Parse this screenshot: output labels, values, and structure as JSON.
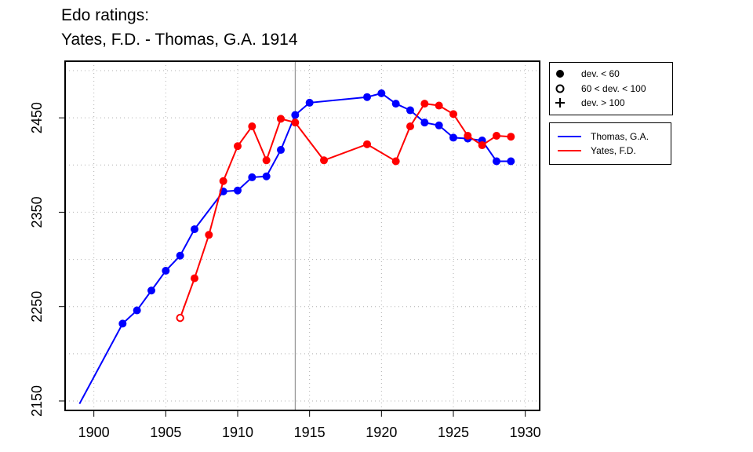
{
  "title_line1": "Edo ratings:",
  "title_line2": "Yates, F.D. - Thomas, G.A. 1914",
  "legend_markers": {
    "filled": "dev. < 60",
    "open": "60 < dev. < 100",
    "plus": "dev. > 100"
  },
  "chart_data": {
    "type": "line",
    "xlim": [
      1898,
      1931
    ],
    "ylim": [
      2140,
      2510
    ],
    "x_ticks": [
      1900,
      1905,
      1910,
      1915,
      1920,
      1925,
      1930
    ],
    "y_ticks": [
      2150,
      2250,
      2350,
      2450
    ],
    "vline": 1914,
    "grid": "dotted",
    "legend_position": "outside-right",
    "series": [
      {
        "name": "Thomas, G.A.",
        "color": "#0000ff",
        "x": [
          1899,
          1902,
          1903,
          1904,
          1905,
          1906,
          1907,
          1909,
          1910,
          1911,
          1912,
          1913,
          1914,
          1915,
          1919,
          1920,
          1921,
          1922,
          1923,
          1924,
          1925,
          1926,
          1927,
          1928,
          1929
        ],
        "y": [
          2147,
          2232,
          2246,
          2267,
          2288,
          2304,
          2332,
          2372,
          2373,
          2387,
          2388,
          2416,
          2453,
          2466,
          2472,
          2476,
          2465,
          2458,
          2445,
          2442,
          2429,
          2428,
          2426,
          2404,
          2404
        ],
        "dev": [
          "none",
          "filled",
          "filled",
          "filled",
          "filled",
          "filled",
          "filled",
          "filled",
          "filled",
          "filled",
          "filled",
          "filled",
          "filled",
          "filled",
          "filled",
          "filled",
          "filled",
          "filled",
          "filled",
          "filled",
          "filled",
          "filled",
          "filled",
          "filled",
          "filled"
        ]
      },
      {
        "name": "Yates, F.D.",
        "color": "#ff0000",
        "x": [
          1906,
          1907,
          1908,
          1909,
          1910,
          1911,
          1912,
          1913,
          1914,
          1916,
          1919,
          1921,
          1922,
          1923,
          1924,
          1925,
          1926,
          1927,
          1928,
          1929
        ],
        "y": [
          2238,
          2280,
          2326,
          2383,
          2420,
          2441,
          2405,
          2449,
          2445,
          2405,
          2422,
          2404,
          2441,
          2465,
          2463,
          2454,
          2431,
          2421,
          2431,
          2430
        ],
        "dev": [
          "open",
          "filled",
          "filled",
          "filled",
          "filled",
          "filled",
          "filled",
          "filled",
          "filled",
          "filled",
          "filled",
          "filled",
          "filled",
          "filled",
          "filled",
          "filled",
          "filled",
          "filled",
          "filled",
          "filled"
        ]
      }
    ]
  }
}
